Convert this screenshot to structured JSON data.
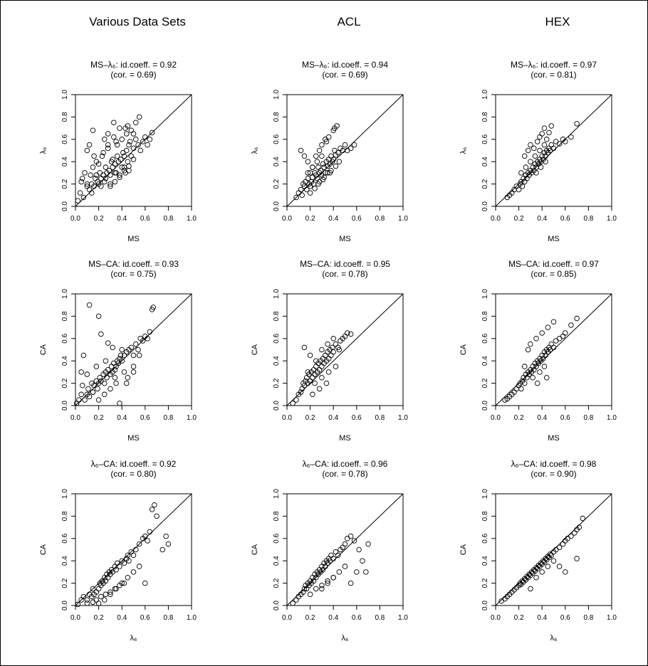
{
  "column_titles": [
    "Various Data Sets",
    "ACL",
    "HEX"
  ],
  "chart_data": [
    {
      "type": "scatter",
      "panel": "r1c1",
      "title_pair": "MS–λ₆",
      "title_stat": ": id.coeff. = 0.92",
      "subtitle": "(cor. = 0.69)",
      "xlabel": "MS",
      "ylabel": "λ₆",
      "xlim": [
        0,
        1
      ],
      "ylim": [
        0,
        1
      ],
      "x": [
        0.02,
        0.04,
        0.05,
        0.07,
        0.08,
        0.1,
        0.1,
        0.12,
        0.13,
        0.14,
        0.15,
        0.16,
        0.17,
        0.18,
        0.19,
        0.2,
        0.21,
        0.22,
        0.23,
        0.24,
        0.25,
        0.26,
        0.27,
        0.28,
        0.29,
        0.3,
        0.31,
        0.32,
        0.33,
        0.34,
        0.35,
        0.36,
        0.37,
        0.38,
        0.39,
        0.4,
        0.41,
        0.42,
        0.43,
        0.44,
        0.45,
        0.46,
        0.47,
        0.48,
        0.5,
        0.52,
        0.54,
        0.56,
        0.58,
        0.6,
        0.62,
        0.64,
        0.66,
        0.12,
        0.16,
        0.2,
        0.24,
        0.28,
        0.32,
        0.36,
        0.4,
        0.44,
        0.48,
        0.52,
        0.3,
        0.34,
        0.38,
        0.42,
        0.46,
        0.5,
        0.06,
        0.1,
        0.14,
        0.18,
        0.22,
        0.26,
        0.3,
        0.34,
        0.38,
        0.42,
        0.46,
        0.15,
        0.25,
        0.35,
        0.45,
        0.55,
        0.28,
        0.33,
        0.43,
        0.5
      ],
      "y": [
        0.05,
        0.12,
        0.22,
        0.08,
        0.3,
        0.18,
        0.5,
        0.15,
        0.28,
        0.2,
        0.35,
        0.18,
        0.25,
        0.4,
        0.22,
        0.2,
        0.3,
        0.25,
        0.45,
        0.28,
        0.22,
        0.35,
        0.3,
        0.55,
        0.32,
        0.28,
        0.4,
        0.35,
        0.62,
        0.38,
        0.3,
        0.45,
        0.4,
        0.7,
        0.42,
        0.35,
        0.48,
        0.45,
        0.3,
        0.5,
        0.4,
        0.55,
        0.58,
        0.45,
        0.52,
        0.6,
        0.55,
        0.5,
        0.58,
        0.62,
        0.55,
        0.6,
        0.66,
        0.55,
        0.45,
        0.38,
        0.48,
        0.52,
        0.42,
        0.55,
        0.6,
        0.65,
        0.68,
        0.75,
        0.18,
        0.22,
        0.26,
        0.32,
        0.36,
        0.42,
        0.25,
        0.2,
        0.12,
        0.28,
        0.18,
        0.25,
        0.2,
        0.3,
        0.28,
        0.35,
        0.32,
        0.68,
        0.6,
        0.58,
        0.72,
        0.8,
        0.65,
        0.75,
        0.7,
        0.65
      ]
    },
    {
      "type": "scatter",
      "panel": "r1c2",
      "title_pair": "MS–λ₆",
      "title_stat": ": id.coeff. = 0.94",
      "subtitle": "(cor. = 0.69)",
      "xlabel": "MS",
      "ylabel": "λ₆",
      "xlim": [
        0,
        1
      ],
      "ylim": [
        0,
        1
      ],
      "x": [
        0.08,
        0.1,
        0.12,
        0.13,
        0.14,
        0.15,
        0.16,
        0.17,
        0.18,
        0.19,
        0.2,
        0.2,
        0.21,
        0.22,
        0.23,
        0.24,
        0.25,
        0.26,
        0.27,
        0.28,
        0.29,
        0.3,
        0.31,
        0.32,
        0.33,
        0.34,
        0.35,
        0.36,
        0.37,
        0.38,
        0.39,
        0.4,
        0.41,
        0.42,
        0.44,
        0.46,
        0.48,
        0.5,
        0.52,
        0.55,
        0.58,
        0.15,
        0.18,
        0.22,
        0.25,
        0.28,
        0.3,
        0.33,
        0.36,
        0.4,
        0.43,
        0.2,
        0.24,
        0.27,
        0.31,
        0.35,
        0.38,
        0.42,
        0.45,
        0.18,
        0.22,
        0.26,
        0.3,
        0.34,
        0.12,
        0.28,
        0.32,
        0.37,
        0.41
      ],
      "y": [
        0.08,
        0.12,
        0.15,
        0.1,
        0.2,
        0.18,
        0.22,
        0.15,
        0.25,
        0.2,
        0.18,
        0.3,
        0.22,
        0.26,
        0.2,
        0.3,
        0.28,
        0.25,
        0.35,
        0.3,
        0.32,
        0.28,
        0.38,
        0.35,
        0.3,
        0.4,
        0.36,
        0.42,
        0.38,
        0.45,
        0.4,
        0.42,
        0.5,
        0.46,
        0.48,
        0.52,
        0.5,
        0.55,
        0.5,
        0.52,
        0.55,
        0.45,
        0.4,
        0.35,
        0.45,
        0.5,
        0.55,
        0.6,
        0.62,
        0.68,
        0.72,
        0.12,
        0.16,
        0.2,
        0.24,
        0.3,
        0.32,
        0.36,
        0.4,
        0.3,
        0.35,
        0.4,
        0.45,
        0.58,
        0.5,
        0.22,
        0.26,
        0.3,
        0.7
      ]
    },
    {
      "type": "scatter",
      "panel": "r1c3",
      "title_pair": "MS–λ₆",
      "title_stat": ": id.coeff. = 0.97",
      "subtitle": "(cor. = 0.81)",
      "xlabel": "MS",
      "ylabel": "λ₆",
      "xlim": [
        0,
        1
      ],
      "ylim": [
        0,
        1
      ],
      "x": [
        0.1,
        0.12,
        0.14,
        0.16,
        0.18,
        0.2,
        0.21,
        0.22,
        0.23,
        0.24,
        0.25,
        0.26,
        0.27,
        0.28,
        0.29,
        0.3,
        0.31,
        0.32,
        0.33,
        0.34,
        0.35,
        0.36,
        0.37,
        0.38,
        0.39,
        0.4,
        0.41,
        0.42,
        0.43,
        0.44,
        0.45,
        0.46,
        0.47,
        0.48,
        0.5,
        0.52,
        0.55,
        0.58,
        0.6,
        0.65,
        0.7,
        0.25,
        0.28,
        0.3,
        0.33,
        0.36,
        0.38,
        0.4,
        0.42,
        0.44,
        0.46,
        0.26,
        0.3,
        0.34,
        0.38,
        0.42,
        0.22,
        0.35,
        0.39,
        0.43,
        0.48
      ],
      "y": [
        0.08,
        0.1,
        0.12,
        0.15,
        0.18,
        0.15,
        0.2,
        0.22,
        0.18,
        0.25,
        0.22,
        0.28,
        0.25,
        0.3,
        0.28,
        0.32,
        0.3,
        0.35,
        0.32,
        0.38,
        0.35,
        0.4,
        0.38,
        0.42,
        0.4,
        0.45,
        0.42,
        0.48,
        0.45,
        0.5,
        0.48,
        0.52,
        0.5,
        0.55,
        0.52,
        0.58,
        0.56,
        0.6,
        0.58,
        0.62,
        0.74,
        0.45,
        0.5,
        0.55,
        0.52,
        0.58,
        0.62,
        0.65,
        0.7,
        0.6,
        0.66,
        0.35,
        0.4,
        0.45,
        0.5,
        0.55,
        0.3,
        0.3,
        0.35,
        0.4,
        0.72
      ]
    },
    {
      "type": "scatter",
      "panel": "r2c1",
      "title_pair": "MS–CA",
      "title_stat": ": id.coeff. = 0.93",
      "subtitle": "(cor. = 0.75)",
      "xlabel": "MS",
      "ylabel": "CA",
      "xlim": [
        0,
        1
      ],
      "ylim": [
        0,
        1
      ],
      "x": [
        0.01,
        0.03,
        0.05,
        0.06,
        0.08,
        0.1,
        0.11,
        0.12,
        0.14,
        0.15,
        0.16,
        0.18,
        0.19,
        0.2,
        0.21,
        0.22,
        0.24,
        0.25,
        0.26,
        0.27,
        0.28,
        0.3,
        0.31,
        0.32,
        0.33,
        0.34,
        0.35,
        0.36,
        0.37,
        0.38,
        0.39,
        0.4,
        0.42,
        0.44,
        0.46,
        0.48,
        0.5,
        0.52,
        0.54,
        0.56,
        0.58,
        0.6,
        0.62,
        0.64,
        0.66,
        0.67,
        0.12,
        0.2,
        0.22,
        0.28,
        0.32,
        0.4,
        0.05,
        0.1,
        0.15,
        0.2,
        0.25,
        0.3,
        0.35,
        0.45,
        0.5,
        0.18,
        0.26,
        0.34,
        0.42,
        0.5,
        0.38,
        0.44,
        0.55,
        0.07
      ],
      "y": [
        0.02,
        0.05,
        0.1,
        0.18,
        0.05,
        0.1,
        0.15,
        0.08,
        0.2,
        0.12,
        0.18,
        0.22,
        0.15,
        0.2,
        0.25,
        0.22,
        0.28,
        0.2,
        0.3,
        0.25,
        0.32,
        0.28,
        0.35,
        0.3,
        0.38,
        0.32,
        0.35,
        0.4,
        0.38,
        0.42,
        0.45,
        0.4,
        0.45,
        0.48,
        0.5,
        0.52,
        0.45,
        0.55,
        0.5,
        0.6,
        0.58,
        0.62,
        0.6,
        0.66,
        0.86,
        0.88,
        0.9,
        0.8,
        0.64,
        0.56,
        0.52,
        0.5,
        0.3,
        0.28,
        0.12,
        0.05,
        0.1,
        0.15,
        0.2,
        0.25,
        0.3,
        0.35,
        0.4,
        0.25,
        0.3,
        0.35,
        0.02,
        0.2,
        0.45,
        0.45
      ]
    },
    {
      "type": "scatter",
      "panel": "r2c2",
      "title_pair": "MS–CA",
      "title_stat": ": id.coeff. = 0.95",
      "subtitle": "(cor. = 0.78)",
      "xlabel": "MS",
      "ylabel": "CA",
      "xlim": [
        0,
        1
      ],
      "ylim": [
        0,
        1
      ],
      "x": [
        0.05,
        0.08,
        0.1,
        0.12,
        0.13,
        0.14,
        0.15,
        0.16,
        0.17,
        0.18,
        0.19,
        0.2,
        0.21,
        0.22,
        0.23,
        0.24,
        0.25,
        0.26,
        0.27,
        0.28,
        0.29,
        0.3,
        0.31,
        0.32,
        0.33,
        0.34,
        0.35,
        0.36,
        0.37,
        0.38,
        0.39,
        0.4,
        0.42,
        0.44,
        0.46,
        0.48,
        0.5,
        0.52,
        0.55,
        0.15,
        0.2,
        0.25,
        0.3,
        0.35,
        0.4,
        0.45,
        0.22,
        0.28,
        0.34,
        0.18,
        0.24,
        0.3,
        0.36,
        0.42
      ],
      "y": [
        0.02,
        0.05,
        0.1,
        0.12,
        0.15,
        0.2,
        0.18,
        0.22,
        0.25,
        0.2,
        0.28,
        0.22,
        0.3,
        0.25,
        0.32,
        0.28,
        0.35,
        0.3,
        0.38,
        0.32,
        0.4,
        0.35,
        0.42,
        0.38,
        0.45,
        0.4,
        0.48,
        0.42,
        0.5,
        0.45,
        0.52,
        0.48,
        0.55,
        0.52,
        0.58,
        0.6,
        0.62,
        0.65,
        0.64,
        0.52,
        0.45,
        0.4,
        0.5,
        0.55,
        0.6,
        0.5,
        0.1,
        0.15,
        0.2,
        0.3,
        0.2,
        0.25,
        0.3,
        0.35
      ]
    },
    {
      "type": "scatter",
      "panel": "r2c3",
      "title_pair": "MS–CA",
      "title_stat": ": id.coeff. = 0.97",
      "subtitle": "(cor. = 0.85)",
      "xlabel": "MS",
      "ylabel": "CA",
      "xlim": [
        0,
        1
      ],
      "ylim": [
        0,
        1
      ],
      "x": [
        0.08,
        0.1,
        0.12,
        0.14,
        0.16,
        0.18,
        0.2,
        0.21,
        0.22,
        0.23,
        0.24,
        0.25,
        0.26,
        0.27,
        0.28,
        0.29,
        0.3,
        0.31,
        0.32,
        0.33,
        0.34,
        0.35,
        0.36,
        0.37,
        0.38,
        0.39,
        0.4,
        0.41,
        0.42,
        0.43,
        0.44,
        0.45,
        0.46,
        0.47,
        0.48,
        0.5,
        0.52,
        0.55,
        0.58,
        0.6,
        0.65,
        0.7,
        0.28,
        0.3,
        0.35,
        0.4,
        0.45,
        0.5,
        0.25,
        0.32,
        0.38,
        0.42,
        0.36,
        0.44
      ],
      "y": [
        0.05,
        0.06,
        0.08,
        0.1,
        0.12,
        0.15,
        0.18,
        0.2,
        0.15,
        0.22,
        0.25,
        0.2,
        0.28,
        0.25,
        0.3,
        0.28,
        0.32,
        0.3,
        0.35,
        0.32,
        0.38,
        0.35,
        0.4,
        0.38,
        0.42,
        0.4,
        0.45,
        0.42,
        0.48,
        0.45,
        0.5,
        0.48,
        0.52,
        0.5,
        0.55,
        0.52,
        0.58,
        0.6,
        0.62,
        0.65,
        0.72,
        0.78,
        0.5,
        0.55,
        0.6,
        0.65,
        0.7,
        0.75,
        0.35,
        0.25,
        0.3,
        0.35,
        0.2,
        0.25
      ]
    },
    {
      "type": "scatter",
      "panel": "r3c1",
      "title_pair": "λ₆–CA",
      "title_stat": ": id.coeff. = 0.92",
      "subtitle": "(cor. = 0.80)",
      "xlabel": "λ₆",
      "ylabel": "CA",
      "xlim": [
        0,
        1
      ],
      "ylim": [
        0,
        1
      ],
      "x": [
        0.02,
        0.05,
        0.07,
        0.1,
        0.12,
        0.14,
        0.15,
        0.16,
        0.18,
        0.2,
        0.21,
        0.22,
        0.23,
        0.24,
        0.25,
        0.26,
        0.27,
        0.28,
        0.29,
        0.3,
        0.31,
        0.32,
        0.34,
        0.35,
        0.36,
        0.38,
        0.4,
        0.42,
        0.44,
        0.45,
        0.46,
        0.48,
        0.5,
        0.52,
        0.55,
        0.58,
        0.6,
        0.62,
        0.64,
        0.66,
        0.68,
        0.7,
        0.75,
        0.78,
        0.8,
        0.2,
        0.25,
        0.3,
        0.35,
        0.4,
        0.45,
        0.5,
        0.55,
        0.6,
        0.1,
        0.15,
        0.18,
        0.22,
        0.26,
        0.3,
        0.34,
        0.38,
        0.42
      ],
      "y": [
        0.01,
        0.05,
        0.08,
        0.05,
        0.1,
        0.08,
        0.15,
        0.1,
        0.12,
        0.15,
        0.2,
        0.18,
        0.22,
        0.2,
        0.25,
        0.22,
        0.28,
        0.25,
        0.3,
        0.28,
        0.32,
        0.3,
        0.35,
        0.32,
        0.38,
        0.35,
        0.4,
        0.38,
        0.42,
        0.45,
        0.4,
        0.48,
        0.45,
        0.5,
        0.55,
        0.6,
        0.62,
        0.58,
        0.66,
        0.86,
        0.9,
        0.8,
        0.5,
        0.62,
        0.55,
        0.02,
        0.05,
        0.1,
        0.15,
        0.2,
        0.25,
        0.3,
        0.35,
        0.2,
        0.02,
        0.03,
        0.05,
        0.08,
        0.1,
        0.12,
        0.15,
        0.18,
        0.2
      ]
    },
    {
      "type": "scatter",
      "panel": "r3c2",
      "title_pair": "λ₆–CA",
      "title_stat": ": id.coeff. = 0.96",
      "subtitle": "(cor. = 0.78)",
      "xlabel": "λ₆",
      "ylabel": "CA",
      "xlim": [
        0,
        1
      ],
      "ylim": [
        0,
        1
      ],
      "x": [
        0.05,
        0.08,
        0.1,
        0.12,
        0.14,
        0.15,
        0.16,
        0.17,
        0.18,
        0.19,
        0.2,
        0.21,
        0.22,
        0.23,
        0.24,
        0.25,
        0.26,
        0.27,
        0.28,
        0.29,
        0.3,
        0.31,
        0.32,
        0.33,
        0.34,
        0.35,
        0.36,
        0.37,
        0.38,
        0.4,
        0.42,
        0.44,
        0.46,
        0.48,
        0.5,
        0.52,
        0.55,
        0.58,
        0.6,
        0.62,
        0.65,
        0.68,
        0.7,
        0.3,
        0.35,
        0.4,
        0.45,
        0.5,
        0.55,
        0.2,
        0.25,
        0.3,
        0.35,
        0.4
      ],
      "y": [
        0.02,
        0.05,
        0.08,
        0.1,
        0.12,
        0.15,
        0.18,
        0.15,
        0.2,
        0.18,
        0.22,
        0.2,
        0.25,
        0.22,
        0.28,
        0.25,
        0.3,
        0.28,
        0.32,
        0.3,
        0.35,
        0.32,
        0.38,
        0.35,
        0.4,
        0.38,
        0.42,
        0.4,
        0.45,
        0.42,
        0.48,
        0.45,
        0.5,
        0.52,
        0.55,
        0.6,
        0.62,
        0.58,
        0.3,
        0.5,
        0.4,
        0.3,
        0.55,
        0.15,
        0.2,
        0.25,
        0.3,
        0.35,
        0.2,
        0.1,
        0.15,
        0.18,
        0.22,
        0.25
      ]
    },
    {
      "type": "scatter",
      "panel": "r3c3",
      "title_pair": "λ₆–CA",
      "title_stat": ": id.coeff. = 0.98",
      "subtitle": "(cor. = 0.90)",
      "xlabel": "λ₆",
      "ylabel": "CA",
      "xlim": [
        0,
        1
      ],
      "ylim": [
        0,
        1
      ],
      "x": [
        0.05,
        0.08,
        0.1,
        0.12,
        0.14,
        0.16,
        0.18,
        0.2,
        0.21,
        0.22,
        0.23,
        0.24,
        0.25,
        0.26,
        0.27,
        0.28,
        0.29,
        0.3,
        0.31,
        0.32,
        0.33,
        0.34,
        0.35,
        0.36,
        0.37,
        0.38,
        0.39,
        0.4,
        0.41,
        0.42,
        0.43,
        0.44,
        0.45,
        0.46,
        0.47,
        0.48,
        0.5,
        0.52,
        0.55,
        0.58,
        0.6,
        0.62,
        0.65,
        0.68,
        0.7,
        0.72,
        0.75,
        0.35,
        0.4,
        0.45,
        0.5,
        0.55,
        0.6,
        0.3,
        0.7
      ],
      "y": [
        0.04,
        0.06,
        0.08,
        0.1,
        0.12,
        0.14,
        0.16,
        0.18,
        0.2,
        0.19,
        0.22,
        0.21,
        0.24,
        0.23,
        0.26,
        0.25,
        0.28,
        0.27,
        0.3,
        0.29,
        0.32,
        0.31,
        0.34,
        0.33,
        0.36,
        0.35,
        0.38,
        0.37,
        0.4,
        0.39,
        0.42,
        0.41,
        0.44,
        0.43,
        0.46,
        0.45,
        0.48,
        0.5,
        0.52,
        0.55,
        0.58,
        0.6,
        0.62,
        0.65,
        0.68,
        0.7,
        0.78,
        0.25,
        0.3,
        0.35,
        0.4,
        0.35,
        0.3,
        0.15,
        0.42
      ]
    }
  ]
}
